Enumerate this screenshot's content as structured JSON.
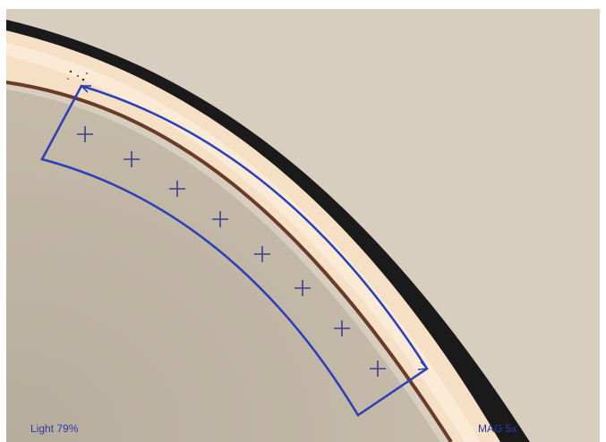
{
  "status": {
    "light_label": "Light 79%",
    "magnification_label": "MAG 5x"
  },
  "overlay": {
    "measurement_markers": 8,
    "line_color": "#2a3fb8",
    "marker_color": "#3a3f8e"
  },
  "colors": {
    "background": "#d7cdbd",
    "coating_dark": "#1b1b1b",
    "coating_light": "#f6e0c5",
    "substrate": "#bdb2a1"
  }
}
